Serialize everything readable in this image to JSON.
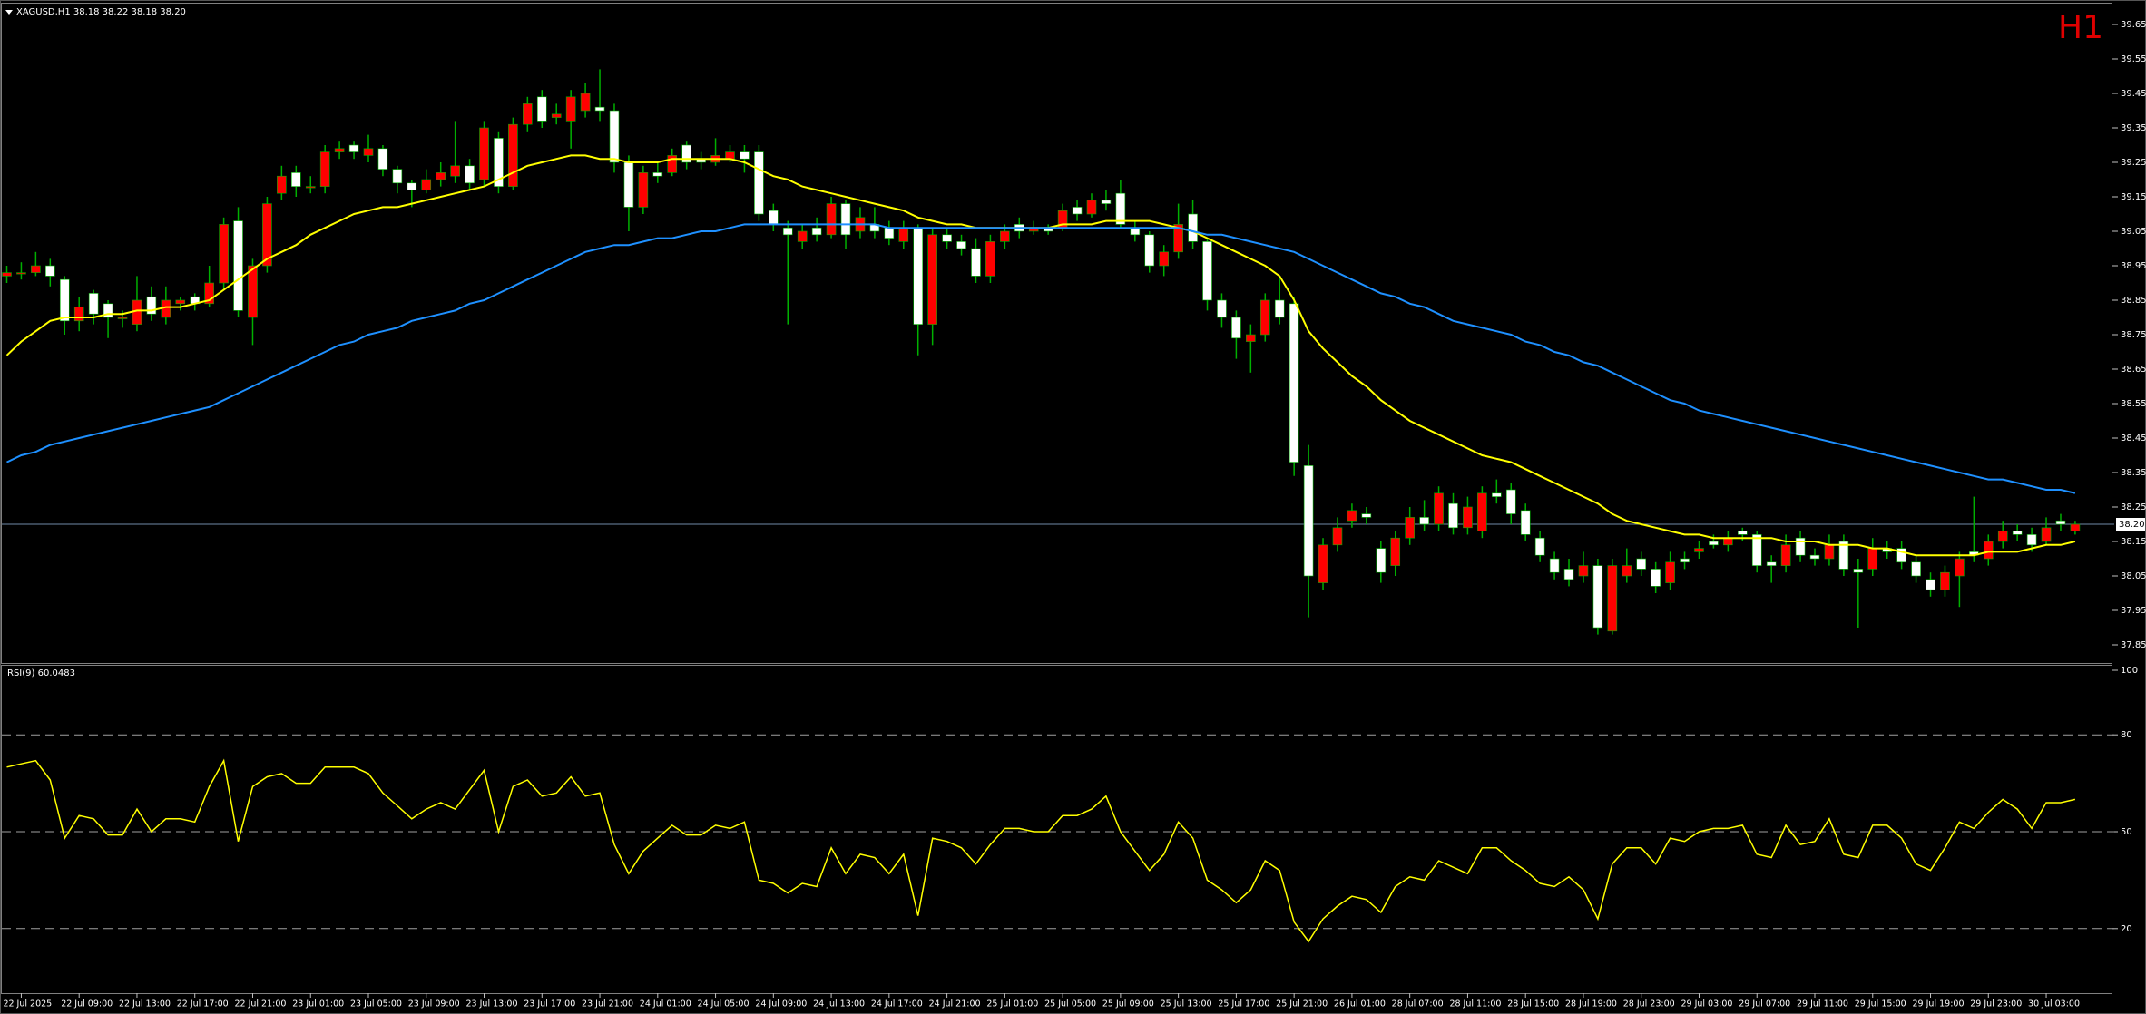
{
  "chart_data": [
    {
      "type": "candlestick",
      "header": "XAGUSD,H1  38.18 38.22 38.18 38.20",
      "timeframe": "H1",
      "categories": [
        null,
        "22 Jul 2025",
        null,
        null,
        null,
        "22 Jul 09:00",
        null,
        null,
        null,
        "22 Jul 13:00",
        null,
        null,
        null,
        "22 Jul 17:00",
        null,
        null,
        null,
        "22 Jul 21:00",
        null,
        null,
        null,
        "23 Jul 01:00",
        null,
        null,
        null,
        "23 Jul 05:00",
        null,
        null,
        null,
        "23 Jul 09:00",
        null,
        null,
        null,
        "23 Jul 13:00",
        null,
        null,
        null,
        "23 Jul 17:00",
        null,
        null,
        null,
        "23 Jul 21:00",
        null,
        null,
        null,
        "24 Jul 01:00",
        null,
        null,
        null,
        "24 Jul 05:00",
        null,
        null,
        null,
        "24 Jul 09:00",
        null,
        null,
        null,
        "24 Jul 13:00",
        null,
        null,
        null,
        "24 Jul 17:00",
        null,
        null,
        null,
        "24 Jul 21:00",
        null,
        null,
        null,
        "25 Jul 01:00",
        null,
        null,
        null,
        "25 Jul 05:00",
        null,
        null,
        null,
        "25 Jul 09:00",
        null,
        null,
        null,
        "25 Jul 13:00",
        null,
        null,
        null,
        "25 Jul 17:00",
        null,
        null,
        null,
        "25 Jul 21:00",
        null,
        null,
        null,
        "26 Jul 01:00",
        null,
        null,
        null,
        "28 Jul 07:00",
        null,
        null,
        null,
        "28 Jul 11:00",
        null,
        null,
        null,
        "28 Jul 15:00",
        null,
        null,
        null,
        "28 Jul 19:00",
        null,
        null,
        null,
        "28 Jul 23:00",
        null,
        null,
        null,
        "29 Jul 03:00",
        null,
        null,
        null,
        "29 Jul 07:00",
        null,
        null,
        null,
        "29 Jul 11:00",
        null,
        null,
        null,
        "29 Jul 15:00",
        null,
        null,
        null,
        "29 Jul 19:00",
        null,
        null,
        null,
        "29 Jul 23:00",
        null,
        null,
        null,
        "30 Jul 03:00",
        null,
        null
      ],
      "open": [
        38.92,
        38.93,
        38.93,
        38.95,
        38.91,
        38.79,
        38.87,
        38.84,
        38.8,
        38.78,
        38.86,
        38.8,
        38.84,
        38.86,
        38.84,
        38.9,
        39.08,
        38.8,
        38.95,
        39.16,
        39.22,
        39.18,
        39.18,
        39.28,
        39.3,
        39.27,
        39.29,
        39.23,
        39.19,
        39.17,
        39.2,
        39.21,
        39.24,
        39.2,
        39.32,
        39.18,
        39.36,
        39.44,
        39.38,
        39.37,
        39.4,
        39.41,
        39.4,
        39.25,
        39.12,
        39.22,
        39.22,
        39.3,
        39.26,
        39.25,
        39.26,
        39.28,
        39.28,
        39.11,
        39.06,
        39.02,
        39.06,
        39.04,
        39.13,
        39.05,
        39.07,
        39.06,
        39.02,
        39.06,
        38.78,
        39.04,
        39.02,
        39.0,
        38.92,
        39.02,
        39.07,
        39.05,
        39.06,
        39.06,
        39.12,
        39.1,
        39.14,
        39.16,
        39.06,
        39.04,
        38.95,
        38.99,
        39.1,
        39.02,
        38.85,
        38.8,
        38.73,
        38.75,
        38.85,
        38.84,
        38.37,
        38.03,
        38.14,
        38.21,
        38.23,
        38.13,
        38.08,
        38.16,
        38.22,
        38.2,
        38.26,
        38.19,
        38.18,
        38.29,
        38.3,
        38.24,
        38.16,
        38.1,
        38.07,
        38.05,
        38.08,
        37.89,
        38.05,
        38.1,
        38.07,
        38.03,
        38.1,
        38.12,
        38.15,
        38.14,
        38.18,
        38.17,
        38.09,
        38.08,
        38.16,
        38.11,
        38.1,
        38.15,
        38.07,
        38.07,
        38.13,
        38.13,
        38.09,
        38.04,
        38.01,
        38.05,
        38.12,
        38.1,
        38.15,
        38.18,
        38.17,
        38.15,
        38.21,
        38.18
      ],
      "high": [
        38.95,
        38.96,
        38.99,
        38.97,
        38.92,
        38.86,
        38.88,
        38.85,
        38.82,
        38.92,
        38.89,
        38.89,
        38.86,
        38.87,
        38.95,
        39.09,
        39.12,
        38.97,
        39.15,
        39.24,
        39.24,
        39.21,
        39.3,
        39.31,
        39.31,
        39.33,
        39.3,
        39.24,
        39.2,
        39.23,
        39.25,
        39.37,
        39.26,
        39.37,
        39.34,
        39.38,
        39.44,
        39.46,
        39.42,
        39.46,
        39.48,
        39.52,
        39.42,
        39.27,
        39.24,
        39.25,
        39.29,
        39.31,
        39.28,
        39.32,
        39.3,
        39.3,
        39.3,
        39.13,
        39.08,
        39.07,
        39.09,
        39.15,
        39.14,
        39.12,
        39.12,
        39.08,
        39.08,
        39.07,
        39.06,
        39.06,
        39.04,
        39.03,
        39.04,
        39.07,
        39.09,
        39.08,
        39.07,
        39.13,
        39.14,
        39.16,
        39.17,
        39.2,
        39.08,
        39.05,
        39.01,
        39.13,
        39.14,
        39.03,
        38.87,
        38.82,
        38.78,
        38.87,
        38.92,
        38.86,
        38.43,
        38.16,
        38.22,
        38.26,
        38.25,
        38.15,
        38.18,
        38.25,
        38.27,
        38.31,
        38.29,
        38.28,
        38.31,
        38.33,
        38.32,
        38.26,
        38.18,
        38.12,
        38.1,
        38.12,
        38.1,
        38.1,
        38.13,
        38.12,
        38.09,
        38.12,
        38.12,
        38.15,
        38.17,
        38.18,
        38.19,
        38.18,
        38.11,
        38.17,
        38.18,
        38.13,
        38.17,
        38.17,
        38.1,
        38.16,
        38.15,
        38.15,
        38.11,
        38.06,
        38.08,
        38.12,
        38.28,
        38.17,
        38.21,
        38.2,
        38.19,
        38.22,
        38.23,
        38.21
      ],
      "low": [
        38.9,
        38.91,
        38.92,
        38.89,
        38.75,
        38.76,
        38.78,
        38.74,
        38.77,
        38.76,
        38.79,
        38.78,
        38.82,
        38.82,
        38.83,
        38.88,
        38.8,
        38.72,
        38.93,
        39.14,
        39.15,
        39.16,
        39.16,
        39.26,
        39.26,
        39.25,
        39.21,
        39.16,
        39.12,
        39.16,
        39.18,
        39.19,
        39.17,
        39.18,
        39.16,
        39.17,
        39.34,
        39.35,
        39.36,
        39.29,
        39.38,
        39.37,
        39.22,
        39.05,
        39.1,
        39.19,
        39.21,
        39.23,
        39.23,
        39.24,
        39.25,
        39.22,
        39.08,
        39.05,
        38.78,
        39.0,
        39.02,
        39.03,
        39.0,
        39.03,
        39.03,
        39.01,
        39.0,
        38.69,
        38.72,
        39.0,
        38.98,
        38.9,
        38.9,
        39.0,
        39.03,
        39.04,
        39.04,
        39.05,
        39.08,
        39.09,
        39.11,
        39.06,
        39.02,
        38.93,
        38.92,
        38.97,
        39.0,
        38.82,
        38.77,
        38.68,
        38.64,
        38.73,
        38.78,
        38.34,
        37.93,
        38.01,
        38.12,
        38.19,
        38.2,
        38.03,
        38.05,
        38.14,
        38.18,
        38.18,
        38.17,
        38.17,
        38.16,
        38.26,
        38.2,
        38.15,
        38.09,
        38.04,
        38.02,
        38.03,
        37.88,
        37.88,
        38.03,
        38.05,
        38.0,
        38.01,
        38.07,
        38.1,
        38.13,
        38.12,
        38.15,
        38.06,
        38.03,
        38.06,
        38.09,
        38.08,
        38.08,
        38.05,
        37.9,
        38.05,
        38.1,
        38.07,
        38.03,
        37.99,
        37.99,
        37.96,
        38.09,
        38.08,
        38.13,
        38.15,
        38.12,
        38.14,
        38.18,
        38.17
      ],
      "close": [
        38.93,
        38.93,
        38.95,
        38.92,
        38.79,
        38.83,
        38.81,
        38.8,
        38.8,
        38.85,
        38.81,
        38.85,
        38.85,
        38.84,
        38.9,
        39.07,
        38.82,
        38.95,
        39.13,
        39.21,
        39.18,
        39.18,
        39.28,
        39.29,
        39.28,
        39.29,
        39.23,
        39.19,
        39.17,
        39.2,
        39.22,
        39.24,
        39.19,
        39.35,
        39.18,
        39.36,
        39.42,
        39.37,
        39.39,
        39.44,
        39.45,
        39.4,
        39.25,
        39.12,
        39.22,
        39.21,
        39.27,
        39.25,
        39.25,
        39.27,
        39.28,
        39.26,
        39.1,
        39.07,
        39.04,
        39.05,
        39.04,
        39.13,
        39.04,
        39.09,
        39.05,
        39.03,
        39.06,
        38.78,
        39.04,
        39.02,
        39.0,
        38.92,
        39.02,
        39.05,
        39.05,
        39.06,
        39.05,
        39.11,
        39.1,
        39.14,
        39.13,
        39.07,
        39.04,
        38.95,
        38.99,
        39.07,
        39.02,
        38.85,
        38.8,
        38.74,
        38.75,
        38.85,
        38.8,
        38.38,
        38.05,
        38.14,
        38.19,
        38.24,
        38.22,
        38.06,
        38.16,
        38.22,
        38.2,
        38.29,
        38.19,
        38.25,
        38.29,
        38.28,
        38.23,
        38.17,
        38.11,
        38.06,
        38.04,
        38.08,
        37.9,
        38.08,
        38.08,
        38.07,
        38.02,
        38.09,
        38.09,
        38.13,
        38.14,
        38.16,
        38.17,
        38.08,
        38.08,
        38.14,
        38.11,
        38.1,
        38.14,
        38.07,
        38.06,
        38.13,
        38.12,
        38.09,
        38.05,
        38.01,
        38.06,
        38.1,
        38.11,
        38.15,
        38.18,
        38.17,
        38.14,
        38.19,
        38.2,
        38.2
      ],
      "bull_color": "#ff0000",
      "bear_color": "#ffffff",
      "wick_color": "#00b000",
      "series": [
        {
          "color": "#ffff00",
          "values": [
            38.69,
            38.73,
            38.76,
            38.79,
            38.8,
            38.8,
            38.8,
            38.81,
            38.81,
            38.82,
            38.82,
            38.83,
            38.83,
            38.84,
            38.85,
            38.88,
            38.91,
            38.94,
            38.97,
            38.99,
            39.01,
            39.04,
            39.06,
            39.08,
            39.1,
            39.11,
            39.12,
            39.12,
            39.13,
            39.14,
            39.15,
            39.16,
            39.17,
            39.18,
            39.2,
            39.22,
            39.24,
            39.25,
            39.26,
            39.27,
            39.27,
            39.26,
            39.26,
            39.25,
            39.25,
            39.25,
            39.26,
            39.26,
            39.26,
            39.26,
            39.26,
            39.25,
            39.23,
            39.21,
            39.2,
            39.18,
            39.17,
            39.16,
            39.15,
            39.14,
            39.13,
            39.12,
            39.11,
            39.09,
            39.08,
            39.07,
            39.07,
            39.06,
            39.06,
            39.06,
            39.06,
            39.06,
            39.06,
            39.07,
            39.07,
            39.07,
            39.08,
            39.08,
            39.08,
            39.08,
            39.07,
            39.06,
            39.05,
            39.03,
            39.01,
            38.99,
            38.97,
            38.95,
            38.92,
            38.85,
            38.76,
            38.71,
            38.67,
            38.63,
            38.6,
            38.56,
            38.53,
            38.5,
            38.48,
            38.46,
            38.44,
            38.42,
            38.4,
            38.39,
            38.38,
            38.36,
            38.34,
            38.32,
            38.3,
            38.28,
            38.26,
            38.23,
            38.21,
            38.2,
            38.19,
            38.18,
            38.17,
            38.17,
            38.16,
            38.16,
            38.16,
            38.16,
            38.16,
            38.15,
            38.15,
            38.15,
            38.14,
            38.14,
            38.14,
            38.13,
            38.13,
            38.12,
            38.11,
            38.11,
            38.11,
            38.11,
            38.11,
            38.12,
            38.12,
            38.12,
            38.13,
            38.14,
            38.14,
            38.15
          ]
        },
        {
          "color": "#1e90ff",
          "values": [
            38.38,
            38.4,
            38.41,
            38.43,
            38.44,
            38.45,
            38.46,
            38.47,
            38.48,
            38.49,
            38.5,
            38.51,
            38.52,
            38.53,
            38.54,
            38.56,
            38.58,
            38.6,
            38.62,
            38.64,
            38.66,
            38.68,
            38.7,
            38.72,
            38.73,
            38.75,
            38.76,
            38.77,
            38.79,
            38.8,
            38.81,
            38.82,
            38.84,
            38.85,
            38.87,
            38.89,
            38.91,
            38.93,
            38.95,
            38.97,
            38.99,
            39.0,
            39.01,
            39.01,
            39.02,
            39.03,
            39.03,
            39.04,
            39.05,
            39.05,
            39.06,
            39.07,
            39.07,
            39.07,
            39.07,
            39.07,
            39.07,
            39.07,
            39.07,
            39.07,
            39.07,
            39.06,
            39.06,
            39.06,
            39.06,
            39.06,
            39.06,
            39.06,
            39.06,
            39.06,
            39.06,
            39.06,
            39.06,
            39.06,
            39.06,
            39.06,
            39.06,
            39.06,
            39.06,
            39.06,
            39.06,
            39.06,
            39.05,
            39.04,
            39.04,
            39.03,
            39.02,
            39.01,
            39.0,
            38.99,
            38.97,
            38.95,
            38.93,
            38.91,
            38.89,
            38.87,
            38.86,
            38.84,
            38.83,
            38.81,
            38.79,
            38.78,
            38.77,
            38.76,
            38.75,
            38.73,
            38.72,
            38.7,
            38.69,
            38.67,
            38.66,
            38.64,
            38.62,
            38.6,
            38.58,
            38.56,
            38.55,
            38.53,
            38.52,
            38.51,
            38.5,
            38.49,
            38.48,
            38.47,
            38.46,
            38.45,
            38.44,
            38.43,
            38.42,
            38.41,
            38.4,
            38.39,
            38.38,
            38.37,
            38.36,
            38.35,
            38.34,
            38.33,
            38.33,
            38.32,
            38.31,
            38.3,
            38.3,
            38.29
          ]
        }
      ],
      "price_line": {
        "value": 38.2,
        "label": "38.20"
      },
      "ylim": [
        37.8,
        39.7
      ],
      "yticks": [
        39.65,
        39.55,
        39.45,
        39.35,
        39.25,
        39.15,
        39.05,
        38.95,
        38.85,
        38.75,
        38.65,
        38.55,
        38.45,
        38.35,
        38.25,
        38.15,
        38.05,
        37.95,
        37.85
      ],
      "grid": false
    },
    {
      "type": "line",
      "title": "RSI(9) 60.0483",
      "color": "#ffff00",
      "values": [
        70,
        71,
        72,
        66,
        48,
        55,
        54,
        49,
        49,
        57,
        50,
        54,
        54,
        53,
        64,
        72,
        47,
        64,
        67,
        68,
        65,
        65,
        70,
        70,
        70,
        68,
        62,
        58,
        54,
        57,
        59,
        57,
        63,
        69,
        50,
        64,
        66,
        61,
        62,
        67,
        61,
        62,
        46,
        37,
        44,
        48,
        52,
        49,
        49,
        52,
        51,
        53,
        35,
        34,
        31,
        34,
        33,
        45,
        37,
        43,
        42,
        37,
        43,
        24,
        48,
        47,
        45,
        40,
        46,
        51,
        51,
        50,
        50,
        55,
        55,
        57,
        61,
        50,
        44,
        38,
        43,
        53,
        48,
        35,
        32,
        28,
        32,
        41,
        38,
        22,
        16,
        23,
        27,
        30,
        29,
        25,
        33,
        36,
        35,
        41,
        39,
        37,
        45,
        45,
        41,
        38,
        34,
        33,
        36,
        32,
        23,
        40,
        45,
        45,
        40,
        48,
        47,
        50,
        51,
        51,
        52,
        43,
        42,
        52,
        46,
        47,
        54,
        43,
        42,
        52,
        52,
        48,
        40,
        38,
        45,
        53,
        51,
        56,
        60,
        57,
        51,
        59,
        59,
        60
      ],
      "levels": [
        80,
        50,
        20
      ],
      "ylim": [
        0,
        100
      ],
      "yticks": [
        100,
        80,
        50,
        20
      ]
    }
  ]
}
